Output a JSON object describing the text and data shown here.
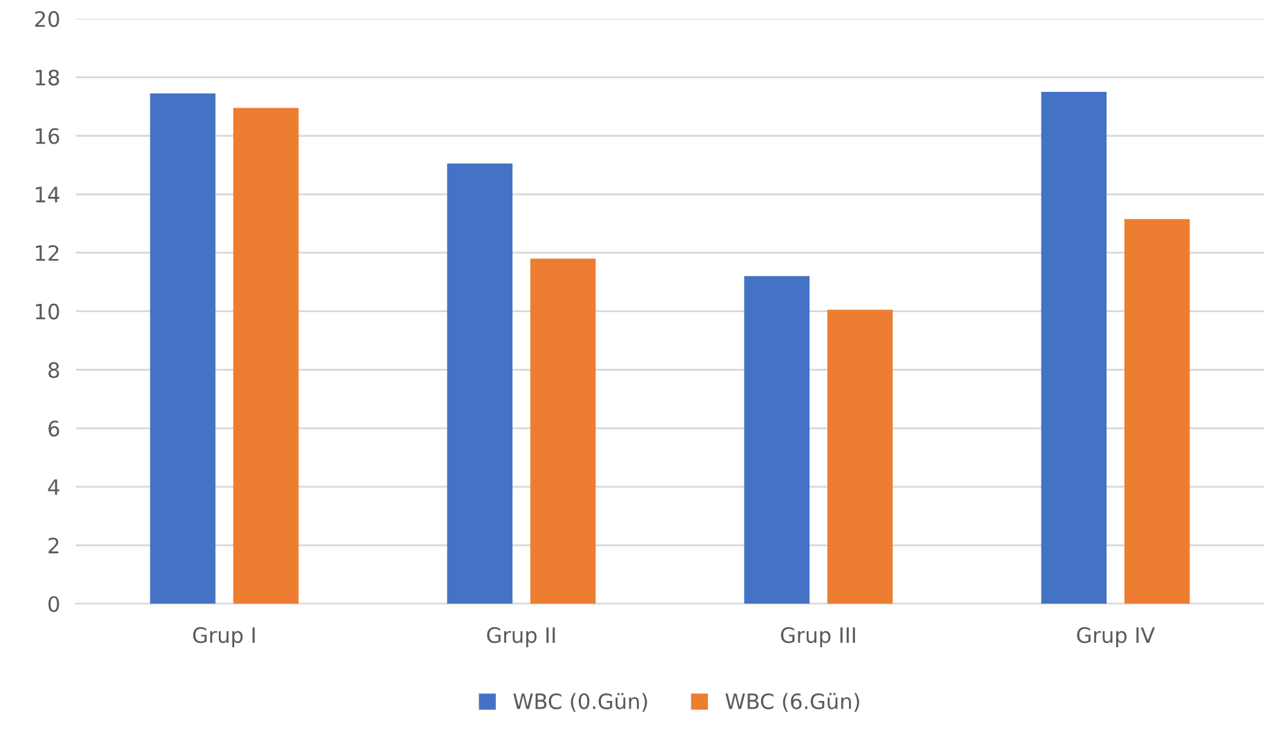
{
  "chart_data": {
    "type": "bar",
    "categories": [
      "Grup I",
      "Grup II",
      "Grup III",
      "Grup IV"
    ],
    "series": [
      {
        "name": "WBC (0.Gün)",
        "color": "#4472c4",
        "values": [
          17.45,
          15.05,
          11.2,
          17.5
        ]
      },
      {
        "name": "WBC (6.Gün)",
        "color": "#ed7d31",
        "values": [
          16.95,
          11.8,
          10.05,
          13.15
        ]
      }
    ],
    "ylim": [
      0,
      20
    ],
    "yticks": [
      0,
      2,
      4,
      6,
      8,
      10,
      12,
      14,
      16,
      18,
      20
    ],
    "grid": "y",
    "legend": "bottom"
  }
}
